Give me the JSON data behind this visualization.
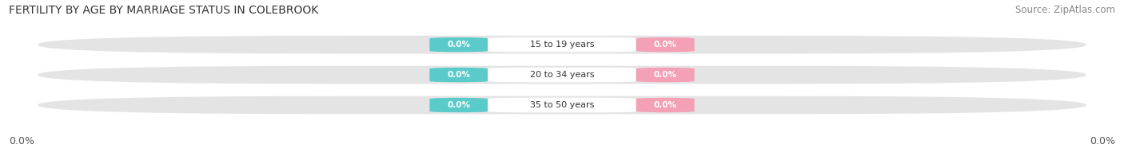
{
  "title": "FERTILITY BY AGE BY MARRIAGE STATUS IN COLEBROOK",
  "source": "Source: ZipAtlas.com",
  "age_groups": [
    "15 to 19 years",
    "20 to 34 years",
    "35 to 50 years"
  ],
  "married_values": [
    0.0,
    0.0,
    0.0
  ],
  "unmarried_values": [
    0.0,
    0.0,
    0.0
  ],
  "married_color": "#5bcaca",
  "unmarried_color": "#f4a0b5",
  "bar_bg_color": "#e4e4e4",
  "label_box_color": "#ffffff",
  "left_label": "0.0%",
  "right_label": "0.0%",
  "title_fontsize": 10,
  "source_fontsize": 8.5,
  "axis_label_fontsize": 9,
  "legend_fontsize": 9,
  "figsize": [
    14.06,
    1.96
  ],
  "dpi": 100
}
